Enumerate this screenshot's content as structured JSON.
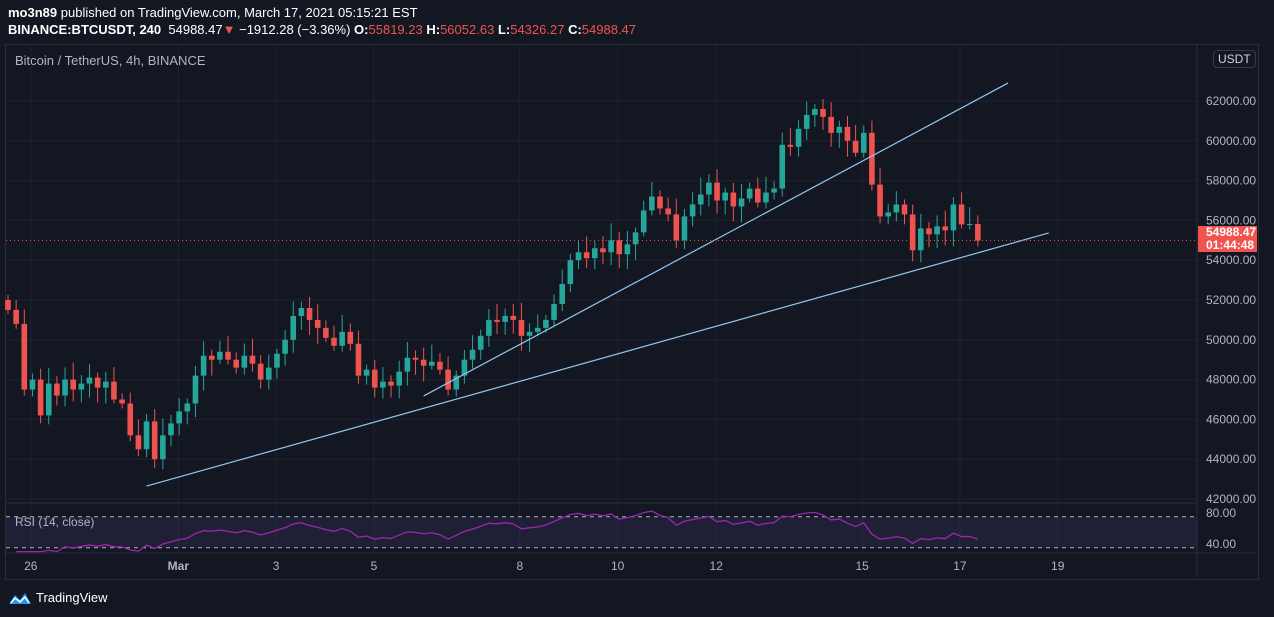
{
  "header": {
    "publisher": "mo3n89",
    "published_text": " published on TradingView.com, March 17, 2021 05:15:21 EST",
    "symbol": "BINANCE:BTCUSDT, 240",
    "last": "54988.47",
    "arrow": "▼",
    "change": "−1912.28 (−3.36%)",
    "o_label": "O:",
    "o": "55819.23",
    "h_label": "H:",
    "h": "56052.63",
    "l_label": "L:",
    "l": "54326.27",
    "c_label": "C:",
    "c": "54988.47"
  },
  "chart_title": "Bitcoin / TetherUS, 4h, BINANCE",
  "currency": "USDT",
  "price_label": "54988.47",
  "countdown": "01:44:48",
  "rsi_label": "RSI (14, close)",
  "brand": "TradingView",
  "colors": {
    "up": "#26a69a",
    "down": "#ef5350",
    "trend": "#90c8f0",
    "rsi": "#9c27b0"
  },
  "chart_data": {
    "type": "candlestick",
    "title": "Bitcoin / TetherUS, 4h, BINANCE",
    "ylim": [
      41500,
      63200
    ],
    "yticks": [
      42000,
      44000,
      46000,
      48000,
      50000,
      52000,
      54000,
      56000,
      58000,
      60000,
      62000
    ],
    "ytick_labels": [
      "42000.00",
      "44000.00",
      "46000.00",
      "48000.00",
      "50000.00",
      "52000.00",
      "54000.00",
      "56000.00",
      "58000.00",
      "60000.00",
      "62000.00"
    ],
    "xticks": [
      {
        "label": "26",
        "idx": 2.8
      },
      {
        "label": "Mar",
        "idx": 20.9
      },
      {
        "label": "3",
        "idx": 32.9
      },
      {
        "label": "5",
        "idx": 44.9
      },
      {
        "label": "8",
        "idx": 62.8
      },
      {
        "label": "10",
        "idx": 74.8
      },
      {
        "label": "12",
        "idx": 86.9
      },
      {
        "label": "15",
        "idx": 104.8
      },
      {
        "label": "17",
        "idx": 116.8
      },
      {
        "label": "19",
        "idx": 128.8
      }
    ],
    "closes": [
      51500,
      50800,
      47500,
      48000,
      46200,
      47800,
      47200,
      48000,
      47500,
      47800,
      48100,
      47600,
      47900,
      47000,
      46800,
      45200,
      44500,
      45900,
      44000,
      45200,
      45800,
      46400,
      46800,
      48200,
      49200,
      49000,
      49400,
      49000,
      48600,
      49200,
      48800,
      48000,
      48600,
      49300,
      50000,
      51200,
      51600,
      51000,
      50600,
      50100,
      49700,
      50400,
      49800,
      48200,
      48500,
      47600,
      47900,
      47700,
      48400,
      49100,
      49000,
      48700,
      48900,
      48500,
      47500,
      48200,
      49000,
      49500,
      50200,
      51000,
      50900,
      51200,
      51000,
      50200,
      50400,
      50600,
      51000,
      51800,
      52800,
      54000,
      54400,
      54100,
      54600,
      54400,
      55000,
      54300,
      54800,
      55400,
      56500,
      57200,
      56600,
      56300,
      55000,
      56200,
      56800,
      57300,
      57900,
      57000,
      57400,
      56700,
      57100,
      57600,
      56900,
      57400,
      57600,
      59800,
      59700,
      60600,
      61300,
      61600,
      61200,
      60400,
      60700,
      60000,
      59400,
      60400,
      57800,
      56200,
      56400,
      56800,
      56300,
      54500,
      55600,
      55300,
      55700,
      55500,
      56800,
      55800,
      55819.23,
      54988.47
    ],
    "last_price": 54988.47,
    "trendlines": [
      {
        "from": {
          "idx": 17,
          "price": 42650
        },
        "to": {
          "idx": 127.7,
          "price": 55370
        }
      },
      {
        "from": {
          "idx": 51,
          "price": 47180
        },
        "to": {
          "idx": 122.7,
          "price": 62900
        }
      }
    ],
    "rsi": {
      "period": 14,
      "levels": [
        70,
        30
      ],
      "tick_labels": [
        "80.00",
        "40.00"
      ],
      "ticks": [
        80,
        40
      ]
    }
  }
}
